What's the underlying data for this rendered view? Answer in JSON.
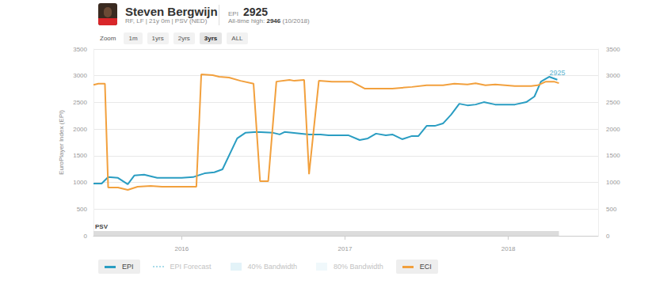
{
  "header": {
    "name": "Steven Bergwijn",
    "subtitle": "RF, LF | 21y 0m | PSV (NED)",
    "epi_label": "EPI",
    "epi_value": 2925,
    "high_label": "All-time high:",
    "high_value": 2946,
    "high_date": "(10/2018)"
  },
  "zoom": {
    "label": "Zoom",
    "buttons": [
      "1m",
      "1yrs",
      "2yrs",
      "3yrs",
      "ALL"
    ],
    "active": "3yrs"
  },
  "legend_items": [
    "EPI",
    "EPI Forecast",
    "40% Bandwidth",
    "80% Bandwidth",
    "ECI"
  ],
  "chart_data": {
    "type": "line",
    "y_label": "EuroPlayer Index (EPI)",
    "xlim": [
      2015.46,
      2018.55
    ],
    "xticks": [
      2016,
      2017,
      2018
    ],
    "ylim": [
      0,
      3500
    ],
    "yticks": [
      0,
      500,
      1000,
      1500,
      2000,
      2500,
      3000,
      3500
    ],
    "y2lim": [
      0,
      3500
    ],
    "y2ticks": [
      0,
      500,
      1000,
      1500,
      2000,
      2500,
      3000,
      3500
    ],
    "grid": true,
    "series": [
      {
        "name": "EPI",
        "color": "#2a9dc2",
        "line_style": "solid",
        "x": [
          2015.46,
          2015.51,
          2015.55,
          2015.61,
          2015.67,
          2015.71,
          2015.77,
          2015.85,
          2016.0,
          2016.07,
          2016.14,
          2016.2,
          2016.25,
          2016.34,
          2016.39,
          2016.46,
          2016.56,
          2016.6,
          2016.63,
          2016.78,
          2016.85,
          2016.9,
          2017.02,
          2017.09,
          2017.14,
          2017.19,
          2017.25,
          2017.29,
          2017.35,
          2017.41,
          2017.45,
          2017.5,
          2017.55,
          2017.6,
          2017.65,
          2017.7,
          2017.75,
          2017.8,
          2017.85,
          2017.92,
          2018.04,
          2018.11,
          2018.16,
          2018.2,
          2018.25,
          2018.3
        ],
        "values": [
          980,
          980,
          1100,
          1085,
          965,
          1130,
          1145,
          1085,
          1085,
          1100,
          1170,
          1190,
          1245,
          1825,
          1930,
          1945,
          1930,
          1900,
          1945,
          1900,
          1900,
          1885,
          1885,
          1795,
          1825,
          1915,
          1885,
          1900,
          1810,
          1870,
          1870,
          2060,
          2060,
          2105,
          2270,
          2475,
          2445,
          2460,
          2505,
          2460,
          2460,
          2505,
          2610,
          2890,
          2980,
          2925
        ]
      },
      {
        "name": "ECI",
        "color": "#f2a03d",
        "line_style": "solid",
        "axis": "y2",
        "x": [
          2015.46,
          2015.49,
          2015.53,
          2015.55,
          2015.61,
          2015.67,
          2015.73,
          2015.81,
          2015.88,
          2016.09,
          2016.12,
          2016.19,
          2016.23,
          2016.29,
          2016.36,
          2016.44,
          2016.48,
          2016.53,
          2016.58,
          2016.66,
          2016.69,
          2016.75,
          2016.78,
          2016.84,
          2016.92,
          2017.04,
          2017.12,
          2017.29,
          2017.41,
          2017.5,
          2017.6,
          2017.67,
          2017.75,
          2017.8,
          2017.86,
          2017.92,
          2018.04,
          2018.14,
          2018.18,
          2018.23,
          2018.28,
          2018.31
        ],
        "values": [
          2830,
          2850,
          2850,
          905,
          905,
          860,
          920,
          935,
          920,
          920,
          3025,
          3010,
          2980,
          2965,
          2905,
          2850,
          1025,
          1025,
          2890,
          2920,
          2905,
          2920,
          1155,
          2905,
          2890,
          2890,
          2760,
          2760,
          2790,
          2820,
          2820,
          2850,
          2835,
          2860,
          2820,
          2835,
          2805,
          2805,
          2820,
          2890,
          2890,
          2860
        ]
      }
    ],
    "annotations": [
      {
        "text": "2925",
        "x": 2018.3,
        "y": 2925
      }
    ],
    "periods": [
      {
        "label": "PSV",
        "from": 2015.46,
        "to": 2018.31
      }
    ]
  }
}
